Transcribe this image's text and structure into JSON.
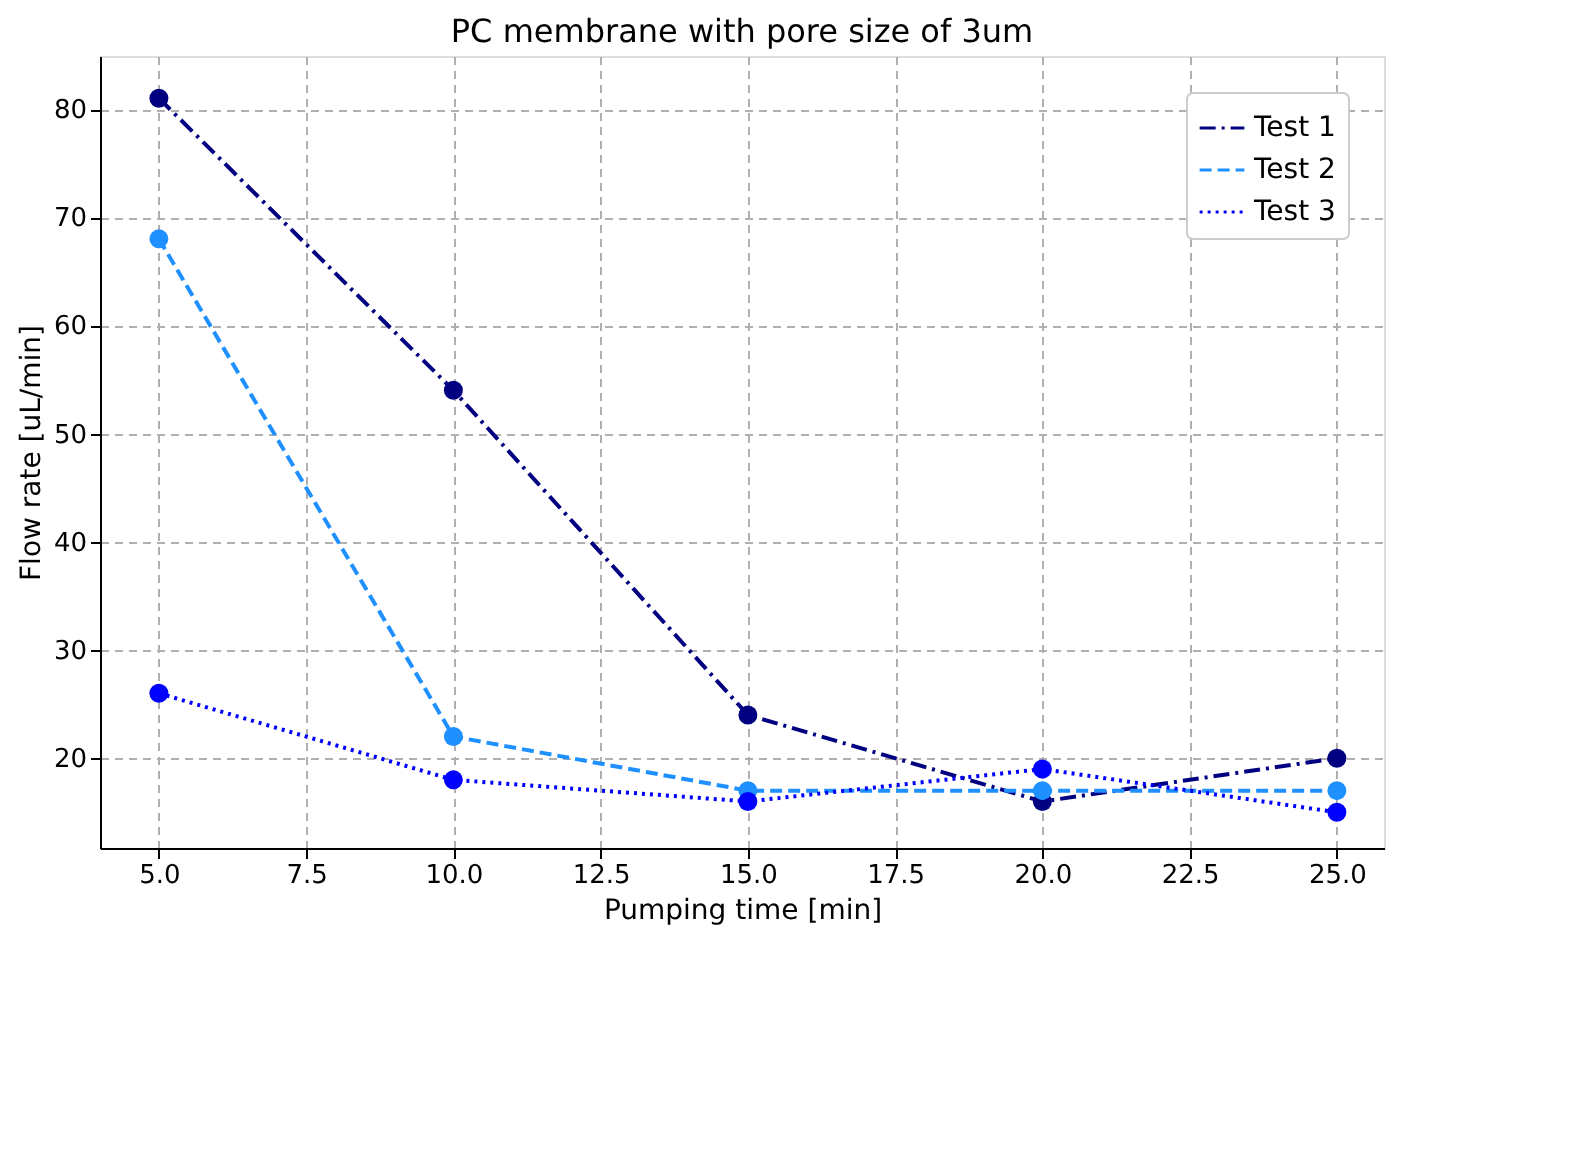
{
  "chart_data": {
    "type": "line",
    "title": "PC membrane with pore size of 3um",
    "xlabel": "Pumping time [min]",
    "ylabel": "Flow rate [uL/min]",
    "x": [
      5,
      10,
      15,
      20,
      25
    ],
    "series": [
      {
        "name": "Test 1",
        "color": "#000080",
        "line_style": "dashdot",
        "values": [
          81,
          54,
          24,
          16,
          20
        ]
      },
      {
        "name": "Test 2",
        "color": "#1e90ff",
        "line_style": "dashed",
        "values": [
          68,
          22,
          17,
          17,
          17
        ]
      },
      {
        "name": "Test 3",
        "color": "#0000ff",
        "line_style": "dotted",
        "values": [
          26,
          18,
          16,
          19,
          15
        ]
      }
    ],
    "xlim": [
      4,
      25.8
    ],
    "ylim": [
      11.7,
      84.9
    ],
    "xticks": [
      {
        "value": 5,
        "label": "5.0"
      },
      {
        "value": 7.5,
        "label": "7.5"
      },
      {
        "value": 10,
        "label": "10.0"
      },
      {
        "value": 12.5,
        "label": "12.5"
      },
      {
        "value": 15,
        "label": "15.0"
      },
      {
        "value": 17.5,
        "label": "17.5"
      },
      {
        "value": 20,
        "label": "20.0"
      },
      {
        "value": 22.5,
        "label": "22.5"
      },
      {
        "value": 25,
        "label": "25.0"
      }
    ],
    "yticks": [
      20,
      30,
      40,
      50,
      60,
      70,
      80
    ],
    "grid": true,
    "legend": "top right",
    "marker": "circle"
  }
}
